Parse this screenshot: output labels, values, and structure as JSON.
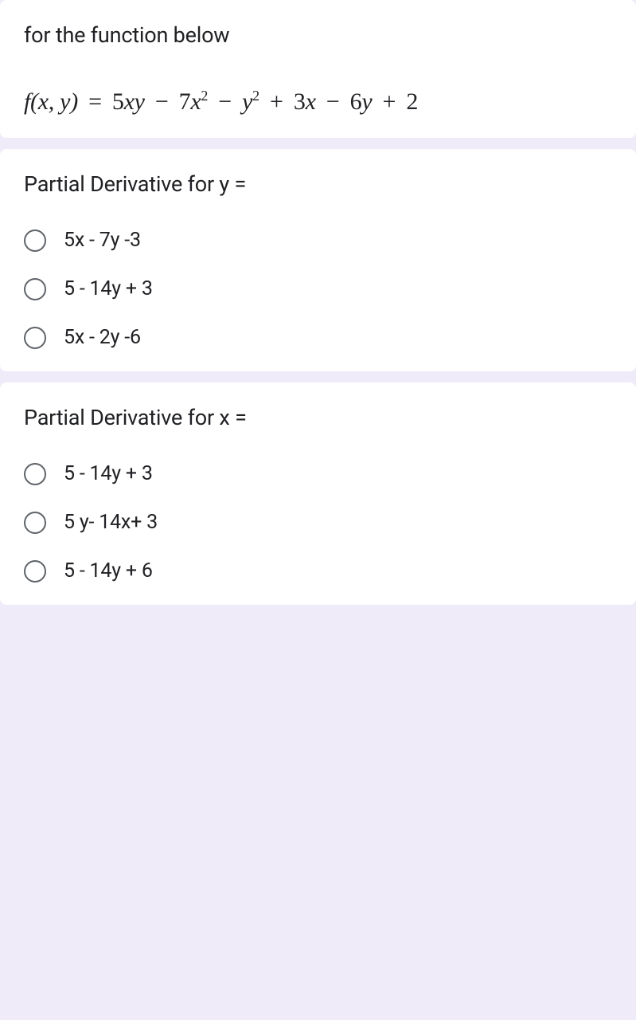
{
  "intro": {
    "text": "for the function below",
    "formula_html": "<span class=\"fn\">f</span>(<span class=\"fn\">x</span>, <span class=\"fn\">y</span>) <span class=\"op\">=</span> <span class=\"num\">5</span><span class=\"fn\">xy</span> <span class=\"op\">−</span> <span class=\"num\">7</span><span class=\"fn\">x</span><sup>2</sup> <span class=\"op\">−</span> <span class=\"fn\">y</span><sup>2</sup> <span class=\"op\">+</span> <span class=\"num\">3</span><span class=\"fn\">x</span> <span class=\"op\">−</span> <span class=\"num\">6</span><span class=\"fn\">y</span> <span class=\"op\">+</span> <span class=\"num\">2</span>"
  },
  "questions": [
    {
      "title": "Partial Derivative for y =",
      "options": [
        {
          "label": "5x - 7y -3"
        },
        {
          "label": "5 - 14y + 3"
        },
        {
          "label": "5x - 2y -6"
        }
      ]
    },
    {
      "title": "Partial Derivative for x =",
      "options": [
        {
          "label": "5 - 14y + 3"
        },
        {
          "label": "5 y- 14x+ 3"
        },
        {
          "label": "5 - 14y + 6"
        }
      ]
    }
  ],
  "colors": {
    "background": "#f0ebf8",
    "card_bg": "#ffffff",
    "text": "#202124",
    "radio_border": "#5f6368"
  }
}
